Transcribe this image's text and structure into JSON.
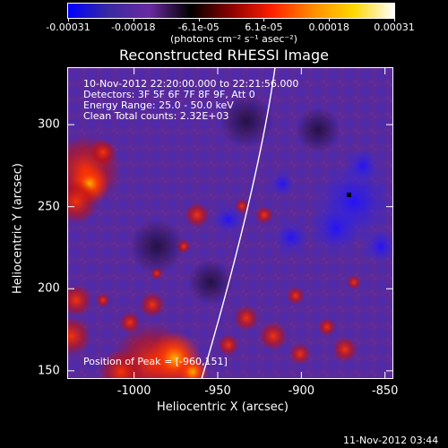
{
  "colorbar": {
    "stops": [
      "#0000ff",
      "#3a2aa0",
      "#6a2aa0",
      "#000000",
      "#8b0000",
      "#ff2000",
      "#ff8c00",
      "#ffd700",
      "#ffffff"
    ],
    "tick_labels": [
      "-0.00031",
      "-0.00018",
      "-6.1e-05",
      "6.1e-05",
      "0.00018",
      "0.00031"
    ],
    "units": "(photons cm⁻² s⁻¹ asec⁻²)"
  },
  "title": "Reconstructed RHESSI Image",
  "info_lines": [
    "10-Nov-2012 22:20:00.000 to 22:21:56.000",
    "Detectors: 3F 5F 6F 7F 8F 9F, Att 0",
    "Energy Range: 25.0 - 50.0 keV",
    "Clean     Total counts: 2.32E+03"
  ],
  "peak_text": "Position of Peak = [-960,151]",
  "axes": {
    "xlabel": "Heliocentric X (arcsec)",
    "ylabel": "Heliocentric Y (arcsec)",
    "xlim": [
      -1040,
      -845
    ],
    "ylim": [
      145,
      335
    ],
    "xticks": [
      "-1000",
      "-950",
      "-900",
      "-850"
    ],
    "yticks": [
      "300",
      "250",
      "200",
      "150"
    ]
  },
  "timestamp": "11-Nov-2012 03:44"
}
